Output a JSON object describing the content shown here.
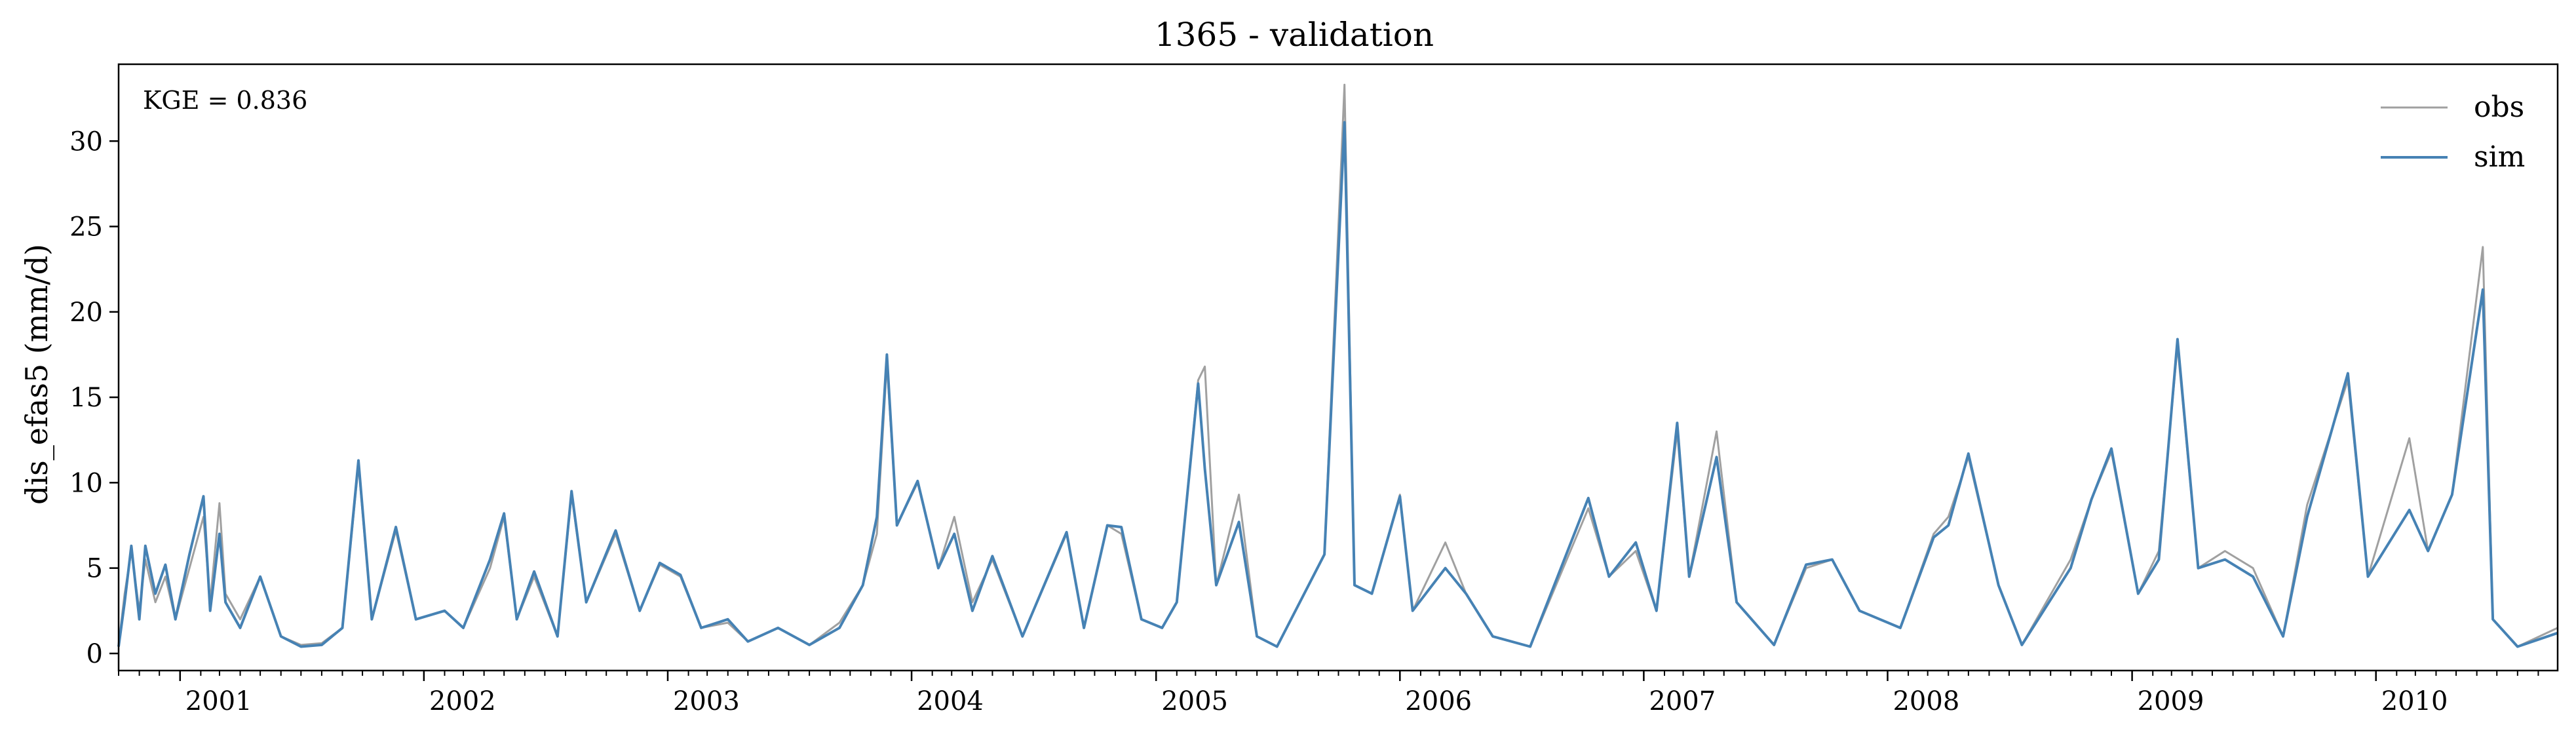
{
  "chart_data": {
    "type": "line",
    "title": "1365 - validation",
    "xlabel": "",
    "ylabel": "dis_efas5 (mm/d)",
    "annotation": "KGE = 0.836",
    "legend_position": "top-right",
    "grid": false,
    "x_range": [
      "2000-10-01",
      "2010-09-30"
    ],
    "ylim": [
      -1,
      34.5
    ],
    "y_ticks": [
      0,
      5,
      10,
      15,
      20,
      25,
      30
    ],
    "y_tick_labels": [
      "0",
      "5",
      "10",
      "15",
      "20",
      "25",
      "30"
    ],
    "x_ticks": [
      "2001-01-01",
      "2002-01-01",
      "2003-01-01",
      "2004-01-01",
      "2005-01-01",
      "2006-01-01",
      "2007-01-01",
      "2008-01-01",
      "2009-01-01",
      "2010-01-01"
    ],
    "x_tick_labels": [
      "2001",
      "2002",
      "2003",
      "2004",
      "2005",
      "2006",
      "2007",
      "2008",
      "2009",
      "2010"
    ],
    "series": [
      {
        "name": "obs",
        "color": "#a0a0a0",
        "points": [
          [
            "2000-10-01",
            0.5
          ],
          [
            "2000-10-10",
            3.5
          ],
          [
            "2000-10-20",
            6.0
          ],
          [
            "2000-11-01",
            2.5
          ],
          [
            "2000-11-10",
            5.5
          ],
          [
            "2000-11-25",
            3.0
          ],
          [
            "2000-12-10",
            4.5
          ],
          [
            "2000-12-25",
            2.0
          ],
          [
            "2001-01-15",
            5.0
          ],
          [
            "2001-02-05",
            8.0
          ],
          [
            "2001-02-15",
            3.0
          ],
          [
            "2001-03-01",
            8.8
          ],
          [
            "2001-03-10",
            3.5
          ],
          [
            "2001-04-01",
            2.0
          ],
          [
            "2001-05-01",
            4.5
          ],
          [
            "2001-06-01",
            1.0
          ],
          [
            "2001-07-01",
            0.5
          ],
          [
            "2001-08-01",
            0.6
          ],
          [
            "2001-09-01",
            1.5
          ],
          [
            "2001-09-25",
            11.0
          ],
          [
            "2001-10-15",
            2.0
          ],
          [
            "2001-11-20",
            7.2
          ],
          [
            "2001-12-20",
            2.0
          ],
          [
            "2002-02-01",
            2.5
          ],
          [
            "2002-03-01",
            1.5
          ],
          [
            "2002-04-10",
            5.0
          ],
          [
            "2002-05-01",
            8.0
          ],
          [
            "2002-05-20",
            2.0
          ],
          [
            "2002-06-15",
            4.5
          ],
          [
            "2002-07-20",
            1.0
          ],
          [
            "2002-08-10",
            9.3
          ],
          [
            "2002-09-01",
            3.0
          ],
          [
            "2002-10-15",
            7.0
          ],
          [
            "2002-11-20",
            2.5
          ],
          [
            "2002-12-20",
            5.2
          ],
          [
            "2003-01-20",
            4.5
          ],
          [
            "2003-02-20",
            1.5
          ],
          [
            "2003-04-01",
            1.8
          ],
          [
            "2003-05-01",
            0.7
          ],
          [
            "2003-06-15",
            1.5
          ],
          [
            "2003-08-01",
            0.5
          ],
          [
            "2003-09-15",
            1.8
          ],
          [
            "2003-10-20",
            4.0
          ],
          [
            "2003-11-10",
            7.0
          ],
          [
            "2003-11-25",
            17.0
          ],
          [
            "2003-12-10",
            7.5
          ],
          [
            "2004-01-10",
            10.0
          ],
          [
            "2004-02-10",
            5.0
          ],
          [
            "2004-03-05",
            8.0
          ],
          [
            "2004-04-01",
            3.0
          ],
          [
            "2004-05-01",
            5.5
          ],
          [
            "2004-06-15",
            1.0
          ],
          [
            "2004-08-20",
            7.0
          ],
          [
            "2004-09-15",
            1.5
          ],
          [
            "2004-10-20",
            7.5
          ],
          [
            "2004-11-10",
            7.0
          ],
          [
            "2004-12-10",
            2.0
          ],
          [
            "2005-01-10",
            1.5
          ],
          [
            "2005-02-01",
            3.0
          ],
          [
            "2005-03-05",
            16.0
          ],
          [
            "2005-03-15",
            16.8
          ],
          [
            "2005-04-01",
            4.0
          ],
          [
            "2005-05-05",
            9.3
          ],
          [
            "2005-06-01",
            1.0
          ],
          [
            "2005-07-01",
            0.4
          ],
          [
            "2005-09-10",
            5.8
          ],
          [
            "2005-10-10",
            33.3
          ],
          [
            "2005-10-25",
            4.0
          ],
          [
            "2005-11-20",
            3.5
          ],
          [
            "2006-01-01",
            9.3
          ],
          [
            "2006-01-20",
            2.5
          ],
          [
            "2006-03-10",
            6.5
          ],
          [
            "2006-04-10",
            3.5
          ],
          [
            "2006-05-20",
            1.0
          ],
          [
            "2006-07-15",
            0.4
          ],
          [
            "2006-10-10",
            8.5
          ],
          [
            "2006-11-10",
            4.5
          ],
          [
            "2006-12-20",
            6.0
          ],
          [
            "2007-01-20",
            2.5
          ],
          [
            "2007-02-20",
            13.0
          ],
          [
            "2007-03-10",
            4.5
          ],
          [
            "2007-04-20",
            13.0
          ],
          [
            "2007-05-20",
            3.0
          ],
          [
            "2007-07-15",
            0.5
          ],
          [
            "2007-09-01",
            5.0
          ],
          [
            "2007-10-10",
            5.5
          ],
          [
            "2007-11-20",
            2.5
          ],
          [
            "2008-01-20",
            1.5
          ],
          [
            "2008-03-10",
            7.0
          ],
          [
            "2008-04-01",
            8.0
          ],
          [
            "2008-05-01",
            11.5
          ],
          [
            "2008-06-15",
            4.0
          ],
          [
            "2008-07-20",
            0.5
          ],
          [
            "2008-10-01",
            5.5
          ],
          [
            "2008-11-01",
            9.0
          ],
          [
            "2008-12-01",
            11.8
          ],
          [
            "2009-01-10",
            3.5
          ],
          [
            "2009-02-10",
            6.0
          ],
          [
            "2009-03-10",
            18.0
          ],
          [
            "2009-04-10",
            5.0
          ],
          [
            "2009-05-20",
            6.0
          ],
          [
            "2009-07-01",
            5.0
          ],
          [
            "2009-08-15",
            1.0
          ],
          [
            "2009-09-20",
            8.7
          ],
          [
            "2009-11-20",
            16.0
          ],
          [
            "2009-12-20",
            4.5
          ],
          [
            "2010-02-20",
            12.6
          ],
          [
            "2010-03-20",
            6.0
          ],
          [
            "2010-04-25",
            9.3
          ],
          [
            "2010-06-10",
            23.8
          ],
          [
            "2010-06-25",
            2.0
          ],
          [
            "2010-08-01",
            0.4
          ],
          [
            "2010-09-30",
            1.5
          ]
        ]
      },
      {
        "name": "sim",
        "color": "#4682b4",
        "points": [
          [
            "2000-10-01",
            0.4
          ],
          [
            "2000-10-10",
            3.0
          ],
          [
            "2000-10-20",
            6.3
          ],
          [
            "2000-11-01",
            2.0
          ],
          [
            "2000-11-10",
            6.3
          ],
          [
            "2000-11-25",
            3.5
          ],
          [
            "2000-12-10",
            5.2
          ],
          [
            "2000-12-25",
            2.0
          ],
          [
            "2001-01-15",
            5.8
          ],
          [
            "2001-02-05",
            9.2
          ],
          [
            "2001-02-15",
            2.5
          ],
          [
            "2001-03-01",
            7.0
          ],
          [
            "2001-03-10",
            3.0
          ],
          [
            "2001-04-01",
            1.5
          ],
          [
            "2001-05-01",
            4.5
          ],
          [
            "2001-06-01",
            1.0
          ],
          [
            "2001-07-01",
            0.4
          ],
          [
            "2001-08-01",
            0.5
          ],
          [
            "2001-09-01",
            1.5
          ],
          [
            "2001-09-25",
            11.3
          ],
          [
            "2001-10-15",
            2.0
          ],
          [
            "2001-11-20",
            7.4
          ],
          [
            "2001-12-20",
            2.0
          ],
          [
            "2002-02-01",
            2.5
          ],
          [
            "2002-03-01",
            1.5
          ],
          [
            "2002-04-10",
            5.5
          ],
          [
            "2002-05-01",
            8.2
          ],
          [
            "2002-05-20",
            2.0
          ],
          [
            "2002-06-15",
            4.8
          ],
          [
            "2002-07-20",
            1.0
          ],
          [
            "2002-08-10",
            9.5
          ],
          [
            "2002-09-01",
            3.0
          ],
          [
            "2002-10-15",
            7.2
          ],
          [
            "2002-11-20",
            2.5
          ],
          [
            "2002-12-20",
            5.3
          ],
          [
            "2003-01-20",
            4.6
          ],
          [
            "2003-02-20",
            1.5
          ],
          [
            "2003-04-01",
            2.0
          ],
          [
            "2003-05-01",
            0.7
          ],
          [
            "2003-06-15",
            1.5
          ],
          [
            "2003-08-01",
            0.5
          ],
          [
            "2003-09-15",
            1.5
          ],
          [
            "2003-10-20",
            4.0
          ],
          [
            "2003-11-10",
            8.0
          ],
          [
            "2003-11-25",
            17.5
          ],
          [
            "2003-12-10",
            7.5
          ],
          [
            "2004-01-10",
            10.1
          ],
          [
            "2004-02-10",
            5.0
          ],
          [
            "2004-03-05",
            7.0
          ],
          [
            "2004-04-01",
            2.5
          ],
          [
            "2004-05-01",
            5.7
          ],
          [
            "2004-06-15",
            1.0
          ],
          [
            "2004-08-20",
            7.1
          ],
          [
            "2004-09-15",
            1.5
          ],
          [
            "2004-10-20",
            7.5
          ],
          [
            "2004-11-10",
            7.4
          ],
          [
            "2004-12-10",
            2.0
          ],
          [
            "2005-01-10",
            1.5
          ],
          [
            "2005-02-01",
            3.0
          ],
          [
            "2005-03-05",
            15.8
          ],
          [
            "2005-03-15",
            10.8
          ],
          [
            "2005-04-01",
            4.0
          ],
          [
            "2005-05-05",
            7.7
          ],
          [
            "2005-06-01",
            1.0
          ],
          [
            "2005-07-01",
            0.4
          ],
          [
            "2005-09-10",
            5.8
          ],
          [
            "2005-10-10",
            31.1
          ],
          [
            "2005-10-25",
            4.0
          ],
          [
            "2005-11-20",
            3.5
          ],
          [
            "2006-01-01",
            9.2
          ],
          [
            "2006-01-20",
            2.5
          ],
          [
            "2006-03-10",
            5.0
          ],
          [
            "2006-04-10",
            3.5
          ],
          [
            "2006-05-20",
            1.0
          ],
          [
            "2006-07-15",
            0.4
          ],
          [
            "2006-10-10",
            9.1
          ],
          [
            "2006-11-10",
            4.5
          ],
          [
            "2006-12-20",
            6.5
          ],
          [
            "2007-01-20",
            2.5
          ],
          [
            "2007-02-20",
            13.5
          ],
          [
            "2007-03-10",
            4.5
          ],
          [
            "2007-04-20",
            11.5
          ],
          [
            "2007-05-20",
            3.0
          ],
          [
            "2007-07-15",
            0.5
          ],
          [
            "2007-09-01",
            5.2
          ],
          [
            "2007-10-10",
            5.5
          ],
          [
            "2007-11-20",
            2.5
          ],
          [
            "2008-01-20",
            1.5
          ],
          [
            "2008-03-10",
            6.8
          ],
          [
            "2008-04-01",
            7.5
          ],
          [
            "2008-05-01",
            11.7
          ],
          [
            "2008-06-15",
            4.0
          ],
          [
            "2008-07-20",
            0.5
          ],
          [
            "2008-10-01",
            5.0
          ],
          [
            "2008-11-01",
            9.0
          ],
          [
            "2008-12-01",
            12.0
          ],
          [
            "2009-01-10",
            3.5
          ],
          [
            "2009-02-10",
            5.5
          ],
          [
            "2009-03-10",
            18.4
          ],
          [
            "2009-04-10",
            5.0
          ],
          [
            "2009-05-20",
            5.5
          ],
          [
            "2009-07-01",
            4.5
          ],
          [
            "2009-08-15",
            1.0
          ],
          [
            "2009-09-20",
            8.0
          ],
          [
            "2009-11-20",
            16.4
          ],
          [
            "2009-12-20",
            4.5
          ],
          [
            "2010-02-20",
            8.4
          ],
          [
            "2010-03-20",
            6.0
          ],
          [
            "2010-04-25",
            9.3
          ],
          [
            "2010-06-10",
            21.3
          ],
          [
            "2010-06-25",
            2.0
          ],
          [
            "2010-08-01",
            0.4
          ],
          [
            "2010-09-30",
            1.2
          ]
        ]
      }
    ]
  }
}
